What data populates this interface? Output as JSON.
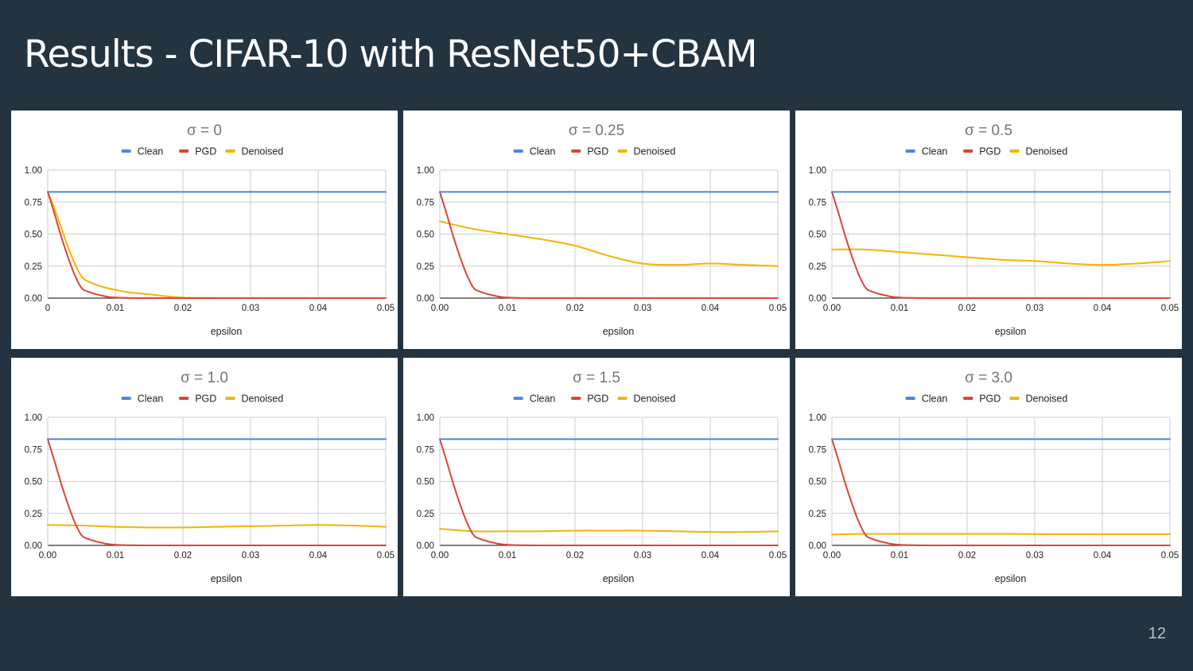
{
  "slide": {
    "title": "Results - CIFAR-10 with ResNet50+CBAM",
    "page_number": "12"
  },
  "colors": {
    "clean": "#4a86e8",
    "pgd": "#db4437",
    "denoised": "#f4b400",
    "background": "#233340"
  },
  "chart_data": [
    {
      "type": "line",
      "title": "σ = 0",
      "xlabel": "epsilon",
      "ylabel": "",
      "xlim": [
        0,
        0.05
      ],
      "ylim": [
        0,
        1
      ],
      "x_ticks": [
        "0",
        "0.01",
        "0.02",
        "0.03",
        "0.04",
        "0.05"
      ],
      "y_ticks": [
        "0.00",
        "0.25",
        "0.50",
        "0.75",
        "1.00"
      ],
      "legend": "top",
      "grid": true,
      "series": [
        {
          "name": "Clean",
          "x": [
            0,
            0.05
          ],
          "values": [
            0.83,
            0.83
          ]
        },
        {
          "name": "PGD",
          "x": [
            0,
            0.001,
            0.002,
            0.003,
            0.004,
            0.005,
            0.006,
            0.008,
            0.01,
            0.015,
            0.02,
            0.03,
            0.04,
            0.05
          ],
          "values": [
            0.83,
            0.66,
            0.48,
            0.32,
            0.18,
            0.08,
            0.05,
            0.02,
            0.005,
            0.0,
            0.0,
            0.0,
            0.0,
            0.0
          ]
        },
        {
          "name": "Denoised",
          "x": [
            0,
            0.001,
            0.002,
            0.003,
            0.004,
            0.005,
            0.006,
            0.008,
            0.01,
            0.012,
            0.015,
            0.02,
            0.03,
            0.04,
            0.05
          ],
          "values": [
            0.83,
            0.7,
            0.55,
            0.4,
            0.27,
            0.17,
            0.13,
            0.09,
            0.065,
            0.045,
            0.03,
            0.005,
            0.0,
            0.0,
            0.0
          ]
        }
      ]
    },
    {
      "type": "line",
      "title": "σ = 0.25",
      "xlabel": "epsilon",
      "ylabel": "",
      "xlim": [
        0,
        0.05
      ],
      "ylim": [
        0,
        1
      ],
      "x_ticks": [
        "0.00",
        "0.01",
        "0.02",
        "0.03",
        "0.04",
        "0.05"
      ],
      "y_ticks": [
        "0.00",
        "0.25",
        "0.50",
        "0.75",
        "1.00"
      ],
      "legend": "top",
      "grid": true,
      "series": [
        {
          "name": "Clean",
          "x": [
            0,
            0.05
          ],
          "values": [
            0.83,
            0.83
          ]
        },
        {
          "name": "PGD",
          "x": [
            0,
            0.001,
            0.002,
            0.003,
            0.004,
            0.005,
            0.006,
            0.008,
            0.01,
            0.015,
            0.02,
            0.03,
            0.04,
            0.05
          ],
          "values": [
            0.83,
            0.66,
            0.48,
            0.32,
            0.18,
            0.08,
            0.05,
            0.02,
            0.005,
            0.0,
            0.0,
            0.0,
            0.0,
            0.0
          ]
        },
        {
          "name": "Denoised",
          "x": [
            0,
            0.005,
            0.01,
            0.015,
            0.02,
            0.025,
            0.03,
            0.035,
            0.04,
            0.045,
            0.05
          ],
          "values": [
            0.6,
            0.54,
            0.5,
            0.46,
            0.41,
            0.33,
            0.27,
            0.26,
            0.27,
            0.26,
            0.25
          ]
        }
      ]
    },
    {
      "type": "line",
      "title": "σ = 0.5",
      "xlabel": "epsilon",
      "ylabel": "",
      "xlim": [
        0,
        0.05
      ],
      "ylim": [
        0,
        1
      ],
      "x_ticks": [
        "0.00",
        "0.01",
        "0.02",
        "0.03",
        "0.04",
        "0.05"
      ],
      "y_ticks": [
        "0.00",
        "0.25",
        "0.50",
        "0.75",
        "1.00"
      ],
      "legend": "top",
      "grid": true,
      "series": [
        {
          "name": "Clean",
          "x": [
            0,
            0.05
          ],
          "values": [
            0.83,
            0.83
          ]
        },
        {
          "name": "PGD",
          "x": [
            0,
            0.001,
            0.002,
            0.003,
            0.004,
            0.005,
            0.006,
            0.008,
            0.01,
            0.015,
            0.02,
            0.03,
            0.04,
            0.05
          ],
          "values": [
            0.83,
            0.66,
            0.48,
            0.32,
            0.18,
            0.08,
            0.05,
            0.02,
            0.005,
            0.0,
            0.0,
            0.0,
            0.0,
            0.0
          ]
        },
        {
          "name": "Denoised",
          "x": [
            0,
            0.005,
            0.01,
            0.015,
            0.02,
            0.025,
            0.03,
            0.035,
            0.04,
            0.045,
            0.05
          ],
          "values": [
            0.38,
            0.38,
            0.36,
            0.34,
            0.32,
            0.3,
            0.29,
            0.27,
            0.26,
            0.27,
            0.29
          ]
        }
      ]
    },
    {
      "type": "line",
      "title": "σ = 1.0",
      "xlabel": "epsilon",
      "ylabel": "",
      "xlim": [
        0,
        0.05
      ],
      "ylim": [
        0,
        1
      ],
      "x_ticks": [
        "0.00",
        "0.01",
        "0.02",
        "0.03",
        "0.04",
        "0.05"
      ],
      "y_ticks": [
        "0.00",
        "0.25",
        "0.50",
        "0.75",
        "1.00"
      ],
      "legend": "top",
      "grid": true,
      "series": [
        {
          "name": "Clean",
          "x": [
            0,
            0.05
          ],
          "values": [
            0.83,
            0.83
          ]
        },
        {
          "name": "PGD",
          "x": [
            0,
            0.001,
            0.002,
            0.003,
            0.004,
            0.005,
            0.006,
            0.008,
            0.01,
            0.015,
            0.02,
            0.03,
            0.04,
            0.05
          ],
          "values": [
            0.83,
            0.66,
            0.48,
            0.32,
            0.18,
            0.08,
            0.05,
            0.02,
            0.005,
            0.0,
            0.0,
            0.0,
            0.0,
            0.0
          ]
        },
        {
          "name": "Denoised",
          "x": [
            0,
            0.005,
            0.01,
            0.015,
            0.02,
            0.025,
            0.03,
            0.035,
            0.04,
            0.045,
            0.05
          ],
          "values": [
            0.16,
            0.155,
            0.145,
            0.14,
            0.14,
            0.145,
            0.15,
            0.155,
            0.16,
            0.155,
            0.145
          ]
        }
      ]
    },
    {
      "type": "line",
      "title": "σ = 1.5",
      "xlabel": "epsilon",
      "ylabel": "",
      "xlim": [
        0,
        0.05
      ],
      "ylim": [
        0,
        1
      ],
      "x_ticks": [
        "0.00",
        "0.01",
        "0.02",
        "0.03",
        "0.04",
        "0.05"
      ],
      "y_ticks": [
        "0.00",
        "0.25",
        "0.50",
        "0.75",
        "1.00"
      ],
      "legend": "top",
      "grid": true,
      "series": [
        {
          "name": "Clean",
          "x": [
            0,
            0.05
          ],
          "values": [
            0.83,
            0.83
          ]
        },
        {
          "name": "PGD",
          "x": [
            0,
            0.001,
            0.002,
            0.003,
            0.004,
            0.005,
            0.006,
            0.008,
            0.01,
            0.015,
            0.02,
            0.03,
            0.04,
            0.05
          ],
          "values": [
            0.83,
            0.66,
            0.48,
            0.32,
            0.18,
            0.08,
            0.05,
            0.02,
            0.005,
            0.0,
            0.0,
            0.0,
            0.0,
            0.0
          ]
        },
        {
          "name": "Denoised",
          "x": [
            0,
            0.005,
            0.01,
            0.015,
            0.02,
            0.025,
            0.03,
            0.035,
            0.04,
            0.045,
            0.05
          ],
          "values": [
            0.13,
            0.11,
            0.11,
            0.11,
            0.115,
            0.115,
            0.115,
            0.11,
            0.105,
            0.105,
            0.11
          ]
        }
      ]
    },
    {
      "type": "line",
      "title": "σ = 3.0",
      "xlabel": "epsilon",
      "ylabel": "",
      "xlim": [
        0,
        0.05
      ],
      "ylim": [
        0,
        1
      ],
      "x_ticks": [
        "0.00",
        "0.01",
        "0.02",
        "0.03",
        "0.04",
        "0.05"
      ],
      "y_ticks": [
        "0.00",
        "0.25",
        "0.50",
        "0.75",
        "1.00"
      ],
      "legend": "top",
      "grid": true,
      "series": [
        {
          "name": "Clean",
          "x": [
            0,
            0.05
          ],
          "values": [
            0.83,
            0.83
          ]
        },
        {
          "name": "PGD",
          "x": [
            0,
            0.001,
            0.002,
            0.003,
            0.004,
            0.005,
            0.006,
            0.008,
            0.01,
            0.015,
            0.02,
            0.03,
            0.04,
            0.05
          ],
          "values": [
            0.83,
            0.66,
            0.48,
            0.32,
            0.18,
            0.08,
            0.05,
            0.02,
            0.005,
            0.0,
            0.0,
            0.0,
            0.0,
            0.0
          ]
        },
        {
          "name": "Denoised",
          "x": [
            0,
            0.005,
            0.01,
            0.015,
            0.02,
            0.025,
            0.03,
            0.035,
            0.04,
            0.045,
            0.05
          ],
          "values": [
            0.085,
            0.09,
            0.09,
            0.09,
            0.09,
            0.09,
            0.088,
            0.088,
            0.088,
            0.088,
            0.088
          ]
        }
      ]
    }
  ]
}
